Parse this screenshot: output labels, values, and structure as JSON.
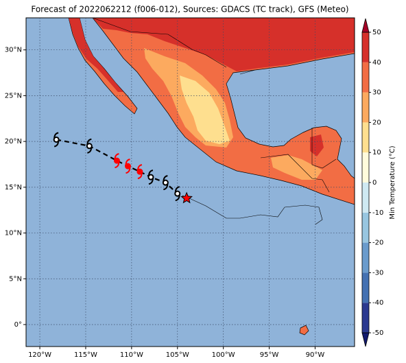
{
  "title": "Forecast of 2022062212 (f006-012), Sources: GDACS (TC track), GFS (Meteo)",
  "map": {
    "xlim": [
      -121.5,
      -85.7
    ],
    "ylim": [
      -2.4,
      33.5
    ],
    "xticks": [
      {
        "value": -120,
        "label": "120°W"
      },
      {
        "value": -115,
        "label": "115°W"
      },
      {
        "value": -110,
        "label": "110°W"
      },
      {
        "value": -105,
        "label": "105°W"
      },
      {
        "value": -100,
        "label": "100°W"
      },
      {
        "value": -95,
        "label": "95°W"
      },
      {
        "value": -90,
        "label": "90°W"
      }
    ],
    "yticks": [
      {
        "value": 0,
        "label": "0°"
      },
      {
        "value": 5,
        "label": "5°N"
      },
      {
        "value": 10,
        "label": "10°N"
      },
      {
        "value": 15,
        "label": "15°N"
      },
      {
        "value": 20,
        "label": "20°N"
      },
      {
        "value": 25,
        "label": "25°N"
      },
      {
        "value": 30,
        "label": "30°N"
      }
    ],
    "grid": true,
    "ocean_color": "#8fb3d9"
  },
  "track": {
    "lon": [
      -118.2,
      -114.6,
      -111.6,
      -110.4,
      -109.1,
      -107.9,
      -106.3,
      -105.0,
      -104.0
    ],
    "lat": [
      20.2,
      19.5,
      17.9,
      17.3,
      16.7,
      16.1,
      15.5,
      14.3,
      13.8
    ],
    "colors": [
      "black",
      "black",
      "red",
      "red",
      "red",
      "black",
      "black",
      "black",
      "red"
    ],
    "symbols": [
      "cyclone",
      "cyclone",
      "cyclone",
      "cyclone",
      "cyclone",
      "cyclone",
      "cyclone",
      "cyclone",
      "star"
    ]
  },
  "colorbar": {
    "label": "Min Temperature (°C)",
    "ticks": [
      -50,
      -40,
      -30,
      -20,
      -10,
      0,
      10,
      20,
      30,
      40,
      50
    ],
    "colors": [
      "#2b3990",
      "#4471b2",
      "#6a9bcc",
      "#98c6e0",
      "#cfe9f2",
      "#fffbdc",
      "#fedf8f",
      "#fcaa5f",
      "#f26d44",
      "#d6302a"
    ],
    "extend_colors": [
      "#121a6e",
      "#a50026"
    ]
  }
}
